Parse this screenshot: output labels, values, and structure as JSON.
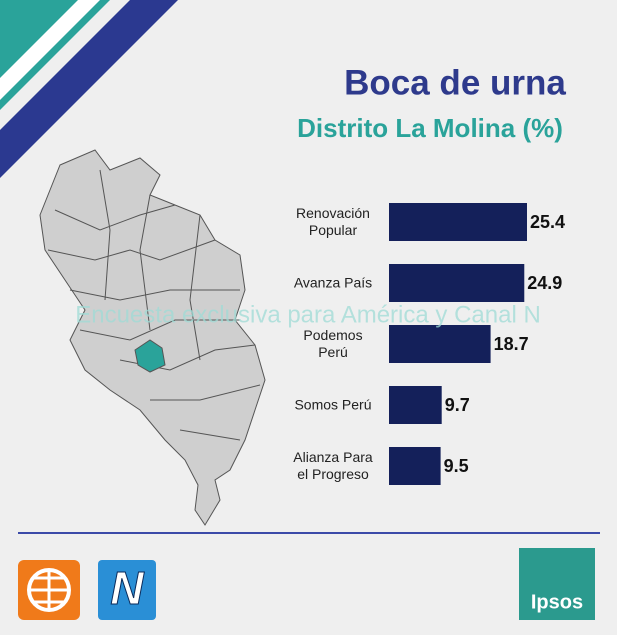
{
  "chart_data": {
    "type": "barh",
    "title": "Boca de urna",
    "subtitle": "Distrito La Molina (%)",
    "categories": [
      "Renovación Popular",
      "Avanza País",
      "Podemos Perú",
      "Somos Perú",
      "Alianza Para el Progreso"
    ],
    "values": [
      25.4,
      24.9,
      18.7,
      9.7,
      9.5
    ],
    "color": "#14205a",
    "watermark": "Encuesta exclusiva para América y Canal N",
    "logos": {
      "canal_n": "N",
      "ipsos": "Ipsos"
    }
  }
}
